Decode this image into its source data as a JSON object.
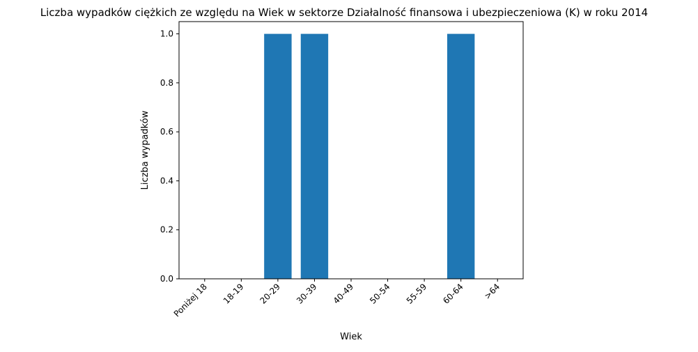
{
  "chart_data": {
    "type": "bar",
    "title": "Liczba wypadków ciężkich ze względu na Wiek w sektorze Działalność finansowa i ubezpieczeniowa (K)   w roku 2014",
    "xlabel": "Wiek",
    "ylabel": "Liczba wypadków",
    "categories": [
      "Poniżej 18",
      "18-19",
      "20-29",
      "30-39",
      "40-49",
      "50-54",
      "55-59",
      "60-64",
      ">64"
    ],
    "values": [
      0,
      0,
      1,
      1,
      0,
      0,
      0,
      1,
      0
    ],
    "ylim": [
      0,
      1.05
    ],
    "yticks": [
      "0.0",
      "0.2",
      "0.4",
      "0.6",
      "0.8",
      "1.0"
    ],
    "bar_color": "#1f77b4",
    "grid": false,
    "legend": "none"
  }
}
